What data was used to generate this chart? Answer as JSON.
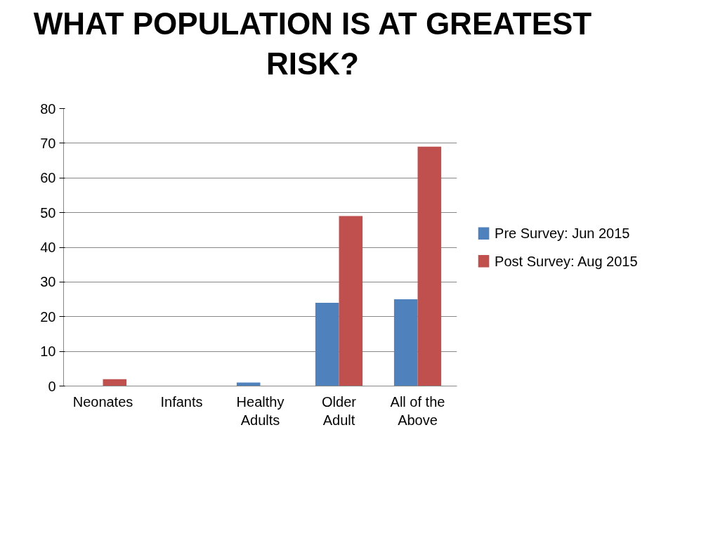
{
  "chart_data": {
    "type": "bar",
    "title": "WHAT POPULATION IS AT GREATEST RISK?",
    "categories": [
      "Neonates",
      "Infants",
      "Healthy Adults",
      "Older Adult",
      "All of the Above"
    ],
    "series": [
      {
        "name": "Pre Survey: Jun 2015",
        "color": "#4f81bd",
        "values": [
          0,
          0,
          1,
          24,
          25
        ]
      },
      {
        "name": "Post Survey: Aug 2015",
        "color": "#c0504d",
        "values": [
          2,
          0,
          0,
          49,
          69
        ]
      }
    ],
    "ylim": [
      0,
      80
    ],
    "yticks": [
      0,
      10,
      20,
      30,
      40,
      50,
      60,
      70,
      80
    ],
    "grid": "y",
    "legend": "right"
  }
}
